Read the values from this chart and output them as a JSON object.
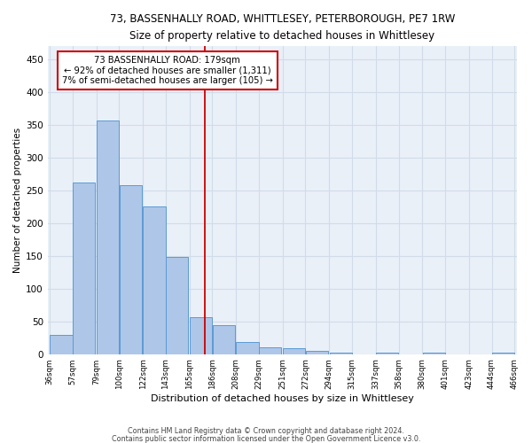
{
  "title": "73, BASSENHALLY ROAD, WHITTLESEY, PETERBOROUGH, PE7 1RW",
  "subtitle": "Size of property relative to detached houses in Whittlesey",
  "xlabel": "Distribution of detached houses by size in Whittlesey",
  "ylabel": "Number of detached properties",
  "bar_color": "#aec6e8",
  "bar_edge_color": "#5b9bd5",
  "grid_color": "#d0dce8",
  "background_color": "#eaf0f8",
  "vline_x": 179,
  "vline_color": "#cc0000",
  "annotation_line1": "73 BASSENHALLY ROAD: 179sqm",
  "annotation_line2": "← 92% of detached houses are smaller (1,311)",
  "annotation_line3": "7% of semi-detached houses are larger (105) →",
  "annotation_box_color": "#cc0000",
  "footnote1": "Contains HM Land Registry data © Crown copyright and database right 2024.",
  "footnote2": "Contains public sector information licensed under the Open Government Licence v3.0.",
  "bins_left": [
    36,
    57,
    79,
    100,
    122,
    143,
    165,
    186,
    208,
    229,
    251,
    272,
    294,
    315,
    337,
    358,
    380,
    401,
    423,
    444
  ],
  "bin_width": 21,
  "bin_labels": [
    "36sqm",
    "57sqm",
    "79sqm",
    "100sqm",
    "122sqm",
    "143sqm",
    "165sqm",
    "186sqm",
    "208sqm",
    "229sqm",
    "251sqm",
    "272sqm",
    "294sqm",
    "315sqm",
    "337sqm",
    "358sqm",
    "380sqm",
    "401sqm",
    "423sqm",
    "444sqm",
    "466sqm"
  ],
  "bar_heights": [
    30,
    262,
    357,
    258,
    225,
    148,
    57,
    44,
    18,
    10,
    9,
    5,
    2,
    0,
    2,
    0,
    2,
    0,
    0,
    2
  ],
  "ylim": [
    0,
    470
  ],
  "yticks": [
    0,
    50,
    100,
    150,
    200,
    250,
    300,
    350,
    400,
    450
  ]
}
